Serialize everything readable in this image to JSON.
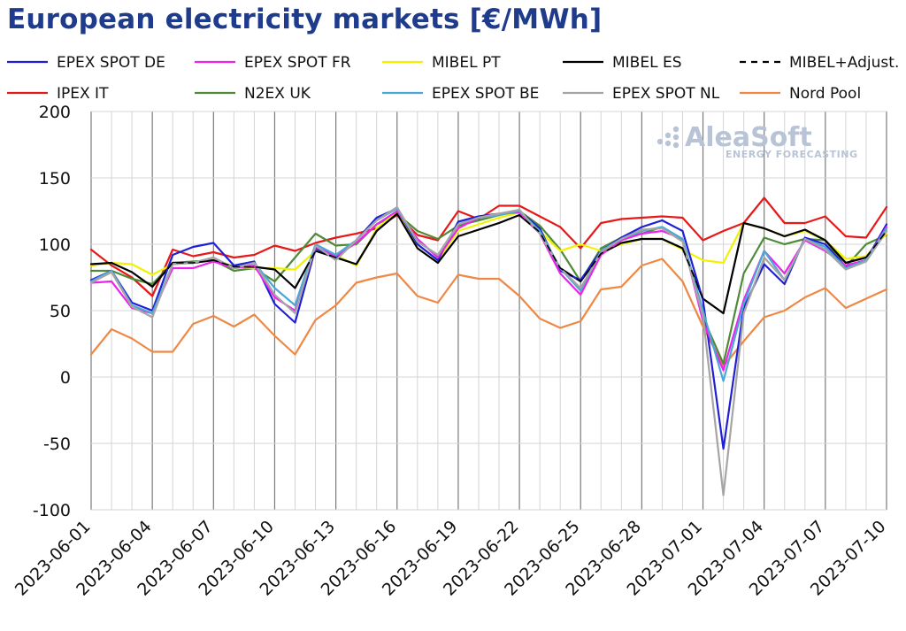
{
  "header": {
    "title": "European electricity markets [€/MWh]"
  },
  "watermark": {
    "brand": "AleaSoft",
    "tagline": "ENERGY FORECASTING"
  },
  "chart_data": {
    "type": "line",
    "title": "European electricity markets [€/MWh]",
    "xlabel": "",
    "ylabel": "",
    "ylim": [
      -100,
      200
    ],
    "yticks": [
      200,
      150,
      100,
      50,
      0,
      -50,
      -100
    ],
    "grid": true,
    "legend_position": "top",
    "x": [
      "2023-06-01",
      "2023-06-02",
      "2023-06-03",
      "2023-06-04",
      "2023-06-05",
      "2023-06-06",
      "2023-06-07",
      "2023-06-08",
      "2023-06-09",
      "2023-06-10",
      "2023-06-11",
      "2023-06-12",
      "2023-06-13",
      "2023-06-14",
      "2023-06-15",
      "2023-06-16",
      "2023-06-17",
      "2023-06-18",
      "2023-06-19",
      "2023-06-20",
      "2023-06-21",
      "2023-06-22",
      "2023-06-23",
      "2023-06-24",
      "2023-06-25",
      "2023-06-26",
      "2023-06-27",
      "2023-06-28",
      "2023-06-29",
      "2023-06-30",
      "2023-07-01",
      "2023-07-02",
      "2023-07-03",
      "2023-07-04",
      "2023-07-05",
      "2023-07-06",
      "2023-07-07",
      "2023-07-08",
      "2023-07-09",
      "2023-07-10"
    ],
    "xtick_labels": [
      "2023-06-01",
      "2023-06-04",
      "2023-06-07",
      "2023-06-10",
      "2023-06-13",
      "2023-06-16",
      "2023-06-19",
      "2023-06-22",
      "2023-06-25",
      "2023-06-28",
      "2023-07-01",
      "2023-07-04",
      "2023-07-07",
      "2023-07-10"
    ],
    "series": [
      {
        "name": "EPEX SPOT DE",
        "color": "#1f1fd6",
        "dash": false,
        "values": [
          73,
          80,
          56,
          50,
          92,
          98,
          101,
          84,
          87,
          55,
          41,
          97,
          90,
          103,
          120,
          127,
          100,
          88,
          117,
          121,
          123,
          125,
          112,
          80,
          73,
          95,
          105,
          113,
          118,
          110,
          58,
          -54,
          52,
          85,
          70,
          105,
          100,
          83,
          88,
          115
        ]
      },
      {
        "name": "EPEX SPOT FR",
        "color": "#ee22ee",
        "dash": false,
        "values": [
          71,
          72,
          52,
          48,
          82,
          82,
          87,
          82,
          84,
          60,
          50,
          98,
          91,
          101,
          115,
          125,
          104,
          90,
          112,
          120,
          123,
          124,
          108,
          78,
          62,
          92,
          103,
          108,
          110,
          104,
          42,
          5,
          58,
          95,
          78,
          103,
          95,
          84,
          88,
          113
        ]
      },
      {
        "name": "MIBEL PT",
        "color": "#f2f200",
        "dash": false,
        "values": [
          84,
          86,
          85,
          77,
          85,
          86,
          89,
          83,
          82,
          82,
          81,
          95,
          92,
          84,
          112,
          124,
          100,
          88,
          110,
          115,
          120,
          124,
          110,
          95,
          100,
          95,
          100,
          104,
          104,
          96,
          88,
          86,
          116,
          112,
          106,
          110,
          103,
          89,
          91,
          108
        ]
      },
      {
        "name": "MIBEL ES",
        "color": "#000000",
        "dash": false,
        "values": [
          85,
          86,
          79,
          68,
          86,
          86,
          88,
          83,
          83,
          81,
          67,
          95,
          90,
          85,
          110,
          123,
          97,
          86,
          106,
          111,
          116,
          122,
          109,
          82,
          72,
          93,
          101,
          104,
          104,
          97,
          59,
          48,
          116,
          112,
          106,
          111,
          103,
          86,
          90,
          110
        ]
      },
      {
        "name": "MIBEL+Adjust.",
        "color": "#000000",
        "dash": true,
        "values": [
          85,
          86,
          79,
          68,
          86,
          86,
          88,
          83,
          83,
          81,
          67,
          95,
          90,
          85,
          110,
          123,
          97,
          86,
          106,
          111,
          116,
          122,
          109,
          82,
          72,
          93,
          101,
          104,
          104,
          97,
          59,
          48,
          116,
          112,
          106,
          111,
          103,
          86,
          90,
          110
        ]
      },
      {
        "name": "IPEX IT",
        "color": "#e61919",
        "dash": false,
        "values": [
          96,
          84,
          75,
          61,
          96,
          91,
          94,
          90,
          92,
          99,
          95,
          101,
          105,
          108,
          112,
          122,
          107,
          103,
          125,
          119,
          129,
          129,
          121,
          113,
          97,
          116,
          119,
          120,
          121,
          120,
          103,
          110,
          116,
          135,
          116,
          116,
          121,
          106,
          105,
          128
        ]
      },
      {
        "name": "N2EX UK",
        "color": "#4f8a36",
        "dash": false,
        "values": [
          80,
          80,
          74,
          70,
          86,
          87,
          88,
          80,
          82,
          72,
          90,
          108,
          99,
          100,
          115,
          123,
          110,
          104,
          114,
          118,
          122,
          125,
          114,
          96,
          72,
          97,
          105,
          108,
          113,
          103,
          45,
          10,
          78,
          105,
          100,
          104,
          103,
          83,
          100,
          107
        ]
      },
      {
        "name": "EPEX SPOT BE",
        "color": "#4aa8d6",
        "dash": false,
        "values": [
          72,
          80,
          54,
          48,
          85,
          86,
          90,
          82,
          86,
          67,
          54,
          100,
          92,
          103,
          118,
          127,
          102,
          92,
          115,
          120,
          122,
          125,
          110,
          82,
          65,
          95,
          104,
          110,
          113,
          104,
          50,
          -3,
          55,
          95,
          73,
          104,
          98,
          82,
          88,
          112
        ]
      },
      {
        "name": "EPEX SPOT NL",
        "color": "#a5a5a5",
        "dash": false,
        "values": [
          71,
          79,
          53,
          45,
          85,
          86,
          90,
          82,
          86,
          62,
          48,
          99,
          88,
          103,
          118,
          128,
          102,
          92,
          115,
          120,
          123,
          126,
          108,
          82,
          67,
          94,
          104,
          111,
          112,
          102,
          46,
          -89,
          48,
          90,
          73,
          104,
          96,
          81,
          87,
          110
        ]
      },
      {
        "name": "Nord Pool",
        "color": "#ee8844",
        "dash": false,
        "values": [
          17,
          36,
          29,
          19,
          19,
          40,
          46,
          38,
          47,
          31,
          17,
          43,
          54,
          71,
          75,
          78,
          61,
          56,
          77,
          74,
          74,
          61,
          44,
          37,
          42,
          66,
          68,
          84,
          89,
          72,
          38,
          8,
          27,
          45,
          50,
          60,
          67,
          52,
          59,
          66
        ]
      }
    ]
  }
}
